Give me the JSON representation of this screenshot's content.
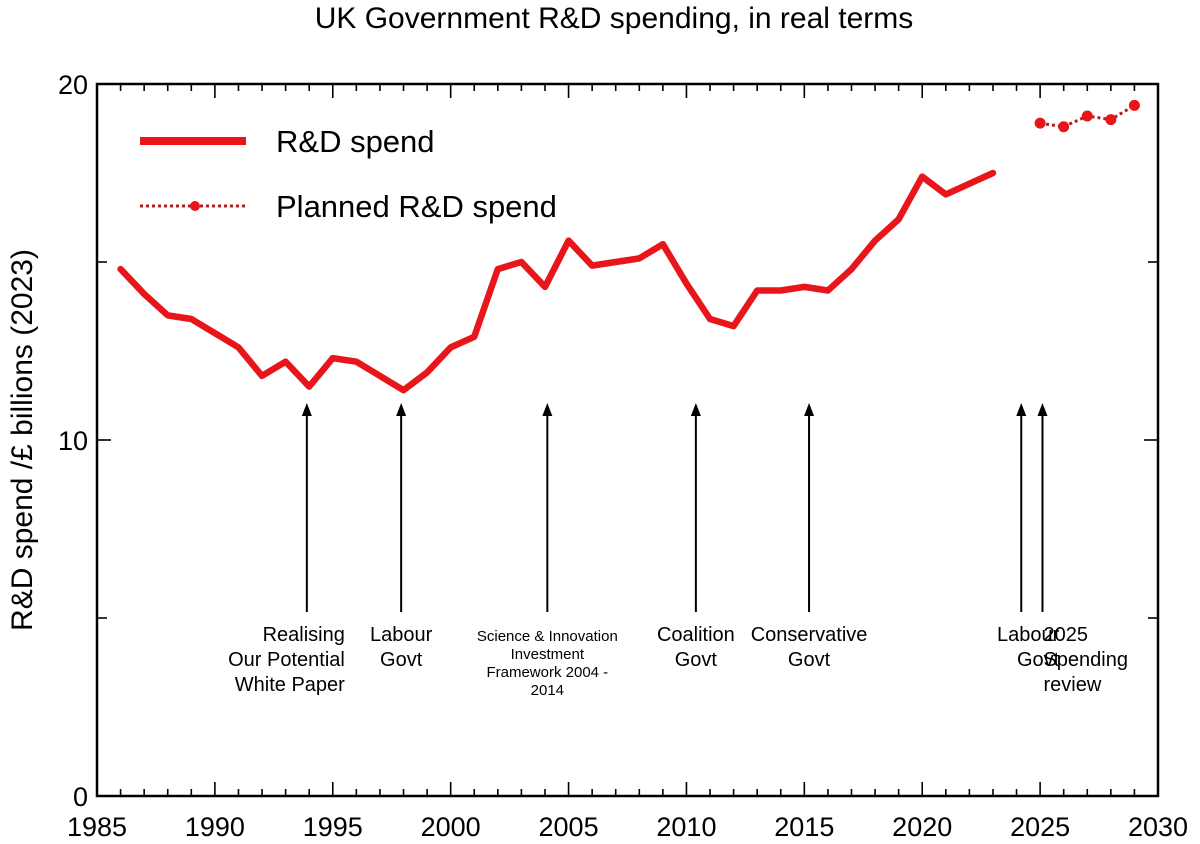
{
  "chart_data": {
    "type": "line",
    "title": "UK Government R&D spending, in real terms",
    "xlabel": "",
    "ylabel": "R&D spend /£ billions (2023)",
    "xlim": [
      1985,
      2030
    ],
    "ylim": [
      0,
      20
    ],
    "x_ticks": [
      "1985",
      "1990",
      "1995",
      "2000",
      "2005",
      "2010",
      "2015",
      "2020",
      "2025",
      "2030"
    ],
    "y_ticks": [
      "0",
      "10",
      "20"
    ],
    "colors": {
      "actual": "#e8161b",
      "planned": "#e8161b",
      "axis": "#000000",
      "text": "#000000"
    },
    "series": [
      {
        "name": "R&D spend",
        "style": "solid",
        "x": [
          1986,
          1987,
          1988,
          1989,
          1990,
          1991,
          1992,
          1993,
          1994,
          1995,
          1996,
          1997,
          1998,
          1999,
          2000,
          2001,
          2002,
          2003,
          2004,
          2005,
          2006,
          2007,
          2008,
          2009,
          2010,
          2011,
          2012,
          2013,
          2014,
          2015,
          2016,
          2017,
          2018,
          2019,
          2020,
          2021,
          2022,
          2023
        ],
        "values": [
          14.8,
          14.1,
          13.5,
          13.4,
          13.0,
          12.6,
          11.8,
          12.2,
          11.5,
          12.3,
          12.2,
          11.8,
          11.4,
          11.9,
          12.6,
          12.9,
          14.8,
          15.0,
          14.3,
          15.6,
          14.9,
          15.0,
          15.1,
          15.5,
          14.4,
          13.4,
          13.2,
          14.2,
          14.2,
          14.3,
          14.2,
          14.8,
          15.6,
          16.2,
          17.4,
          16.9,
          17.2,
          17.5
        ]
      },
      {
        "name": "Planned R&D spend",
        "style": "dotted-markers",
        "x": [
          2025,
          2026,
          2027,
          2028,
          2029
        ],
        "values": [
          18.9,
          18.8,
          19.1,
          19.0,
          19.4
        ]
      }
    ],
    "annotations": [
      {
        "id": "rop",
        "x": 1993.9,
        "lines": [
          "Realising",
          "Our Potential",
          "White Paper"
        ],
        "align": "end",
        "size": "normal"
      },
      {
        "id": "labour1997",
        "x": 1997.9,
        "lines": [
          "Labour",
          "Govt"
        ],
        "align": "middle",
        "size": "normal"
      },
      {
        "id": "sif",
        "x": 2004.1,
        "lines": [
          "Science & Innovation",
          "Investment",
          "Framework 2004 -",
          "2014"
        ],
        "align": "middle",
        "size": "small"
      },
      {
        "id": "coalition",
        "x": 2010.4,
        "lines": [
          "Coalition",
          "Govt"
        ],
        "align": "middle",
        "size": "normal"
      },
      {
        "id": "conservative",
        "x": 2015.2,
        "lines": [
          "Conservative",
          "Govt"
        ],
        "align": "middle",
        "size": "normal"
      },
      {
        "id": "labour2024",
        "x": 2024.2,
        "lines": [
          "Labour",
          "Govt"
        ],
        "align": "end",
        "size": "normal"
      },
      {
        "id": "review2025",
        "x": 2025.1,
        "lines": [
          "2025",
          "Spending",
          "review"
        ],
        "align": "start",
        "size": "normal"
      }
    ],
    "legend": {
      "position": "top-left",
      "entries": [
        "R&D spend",
        "Planned R&D spend"
      ]
    },
    "grid": false
  }
}
